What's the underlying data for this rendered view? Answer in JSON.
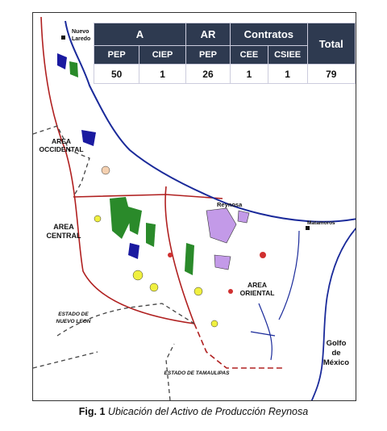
{
  "table": {
    "header_groups": [
      "A",
      "AR",
      "Contratos",
      "Total"
    ],
    "subheaders": [
      "PEP",
      "CIEP",
      "PEP",
      "CEE",
      "CSIEE"
    ],
    "values": [
      50,
      1,
      26,
      1,
      1,
      79
    ]
  },
  "map_labels": {
    "nuevo_laredo": [
      "Nuevo",
      "Laredo"
    ],
    "area_occidental": [
      "AREA",
      "OCCIDENTAL"
    ],
    "area_central": [
      "AREA",
      "CENTRAL"
    ],
    "reynosa": "Reynosa",
    "matamoros": "Matamoros",
    "area_oriental": [
      "AREA",
      "ORIENTAL"
    ],
    "estado_nuevo_leon": [
      "ESTADO DE",
      "NUEVO LEON"
    ],
    "estado_tamaulipas": "ESTADO DE TAMAULIPAS",
    "golfo": [
      "Golfo",
      "de",
      "México"
    ]
  },
  "caption": {
    "label": "Fig. 1",
    "text": "Ubicación del Activo de Producción Reynosa"
  }
}
